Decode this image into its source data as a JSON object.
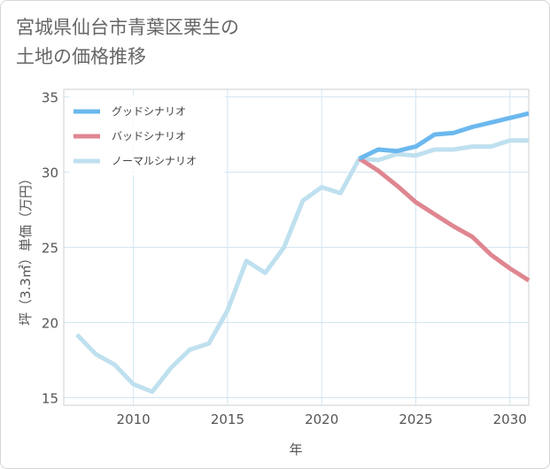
{
  "title_line1": "宮城県仙台市青葉区栗生の",
  "title_line2": "土地の価格推移",
  "chart_data": {
    "type": "line",
    "xlabel": "年",
    "ylabel": "坪（3.3㎡）単価（万円）",
    "xlim": [
      2006.3,
      2031
    ],
    "ylim": [
      14.5,
      35.5
    ],
    "xticks": [
      2010,
      2015,
      2020,
      2025,
      2030
    ],
    "yticks": [
      15,
      20,
      25,
      30,
      35
    ],
    "grid": true,
    "legend_position": "top-left",
    "series": [
      {
        "name": "グッドシナリオ",
        "color": "#6bb8ee",
        "x": [
          2022,
          2023,
          2024,
          2025,
          2026,
          2027,
          2028,
          2029,
          2030,
          2031
        ],
        "y": [
          30.9,
          31.5,
          31.4,
          31.7,
          32.5,
          32.6,
          33.0,
          33.3,
          33.6,
          33.9
        ]
      },
      {
        "name": "バッドシナリオ",
        "color": "#df8690",
        "x": [
          2022,
          2023,
          2024,
          2025,
          2026,
          2027,
          2028,
          2029,
          2030,
          2031
        ],
        "y": [
          30.9,
          30.1,
          29.1,
          28.0,
          27.2,
          26.4,
          25.7,
          24.5,
          23.6,
          22.8
        ]
      },
      {
        "name": "ノーマルシナリオ",
        "color": "#bfe0ef",
        "x": [
          2007,
          2008,
          2009,
          2010,
          2011,
          2012,
          2013,
          2014,
          2015,
          2016,
          2017,
          2018,
          2019,
          2020,
          2021,
          2022,
          2023,
          2024,
          2025,
          2026,
          2027,
          2028,
          2029,
          2030,
          2031
        ],
        "y": [
          19.2,
          17.9,
          17.2,
          15.9,
          15.4,
          17.0,
          18.2,
          18.6,
          20.8,
          24.1,
          23.3,
          25.0,
          28.1,
          29.0,
          28.6,
          30.9,
          30.8,
          31.2,
          31.1,
          31.5,
          31.5,
          31.7,
          31.7,
          32.1,
          32.1
        ]
      }
    ]
  }
}
